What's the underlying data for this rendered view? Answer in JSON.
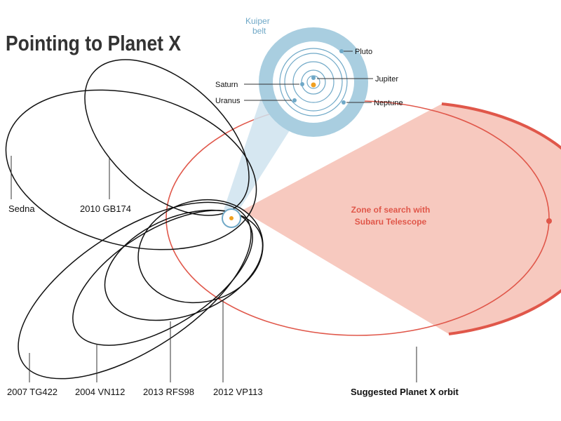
{
  "header": {
    "title": "Pointing to Planet X"
  },
  "inset": {
    "kuiper_label": [
      "Kuiper",
      "belt"
    ],
    "planets": [
      "Pluto",
      "Jupiter",
      "Saturn",
      "Uranus",
      "Neptune"
    ]
  },
  "zone": {
    "label": [
      "Zone of search with",
      "Subaru Telescope"
    ]
  },
  "objects": [
    "Sedna",
    "2010 GB174",
    "2007 TG422",
    "2004 VN112",
    "2013 RFS98",
    "2012 VP113"
  ],
  "planet_x_label": "Suggested Planet X orbit"
}
